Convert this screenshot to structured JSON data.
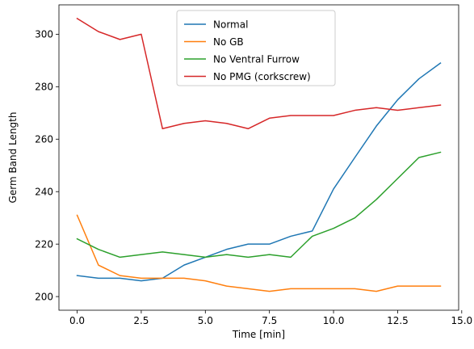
{
  "chart_data": {
    "type": "line",
    "title": "",
    "xlabel": "Time [min]",
    "ylabel": "Germ Band Length",
    "xlim": [
      -0.71,
      14.88
    ],
    "ylim": [
      194.8,
      311.2
    ],
    "xticks": [
      0.0,
      2.5,
      5.0,
      7.5,
      10.0,
      12.5,
      15.0
    ],
    "xtick_labels": [
      "0.0",
      "2.5",
      "5.0",
      "7.5",
      "10.0",
      "12.5",
      "15.0"
    ],
    "yticks": [
      200,
      220,
      240,
      260,
      280,
      300
    ],
    "ytick_labels": [
      "200",
      "220",
      "240",
      "260",
      "280",
      "300"
    ],
    "grid": false,
    "legend_position": "upper-center",
    "x": [
      0.0,
      0.83,
      1.67,
      2.5,
      3.33,
      4.17,
      5.0,
      5.83,
      6.67,
      7.5,
      8.33,
      9.17,
      10.0,
      10.83,
      11.67,
      12.5,
      13.33,
      14.17
    ],
    "series": [
      {
        "name": "Normal",
        "color": "#1f77b4",
        "values": [
          208,
          207,
          207,
          206,
          207,
          212,
          215,
          218,
          220,
          220,
          223,
          225,
          241,
          253,
          265,
          275,
          283,
          289
        ]
      },
      {
        "name": "No GB",
        "color": "#ff7f0e",
        "values": [
          231,
          212,
          208,
          207,
          207,
          207,
          206,
          204,
          203,
          202,
          203,
          203,
          203,
          203,
          202,
          204,
          204,
          204
        ]
      },
      {
        "name": "No Ventral Furrow",
        "color": "#2ca02c",
        "values": [
          222,
          218,
          215,
          216,
          217,
          216,
          215,
          216,
          215,
          216,
          215,
          223,
          226,
          230,
          237,
          245,
          253,
          255
        ]
      },
      {
        "name": "No PMG (corkscrew)",
        "color": "#d62728",
        "values": [
          306,
          301,
          298,
          300,
          264,
          266,
          267,
          266,
          264,
          268,
          269,
          269,
          269,
          271,
          272,
          271,
          272,
          273
        ]
      }
    ]
  }
}
